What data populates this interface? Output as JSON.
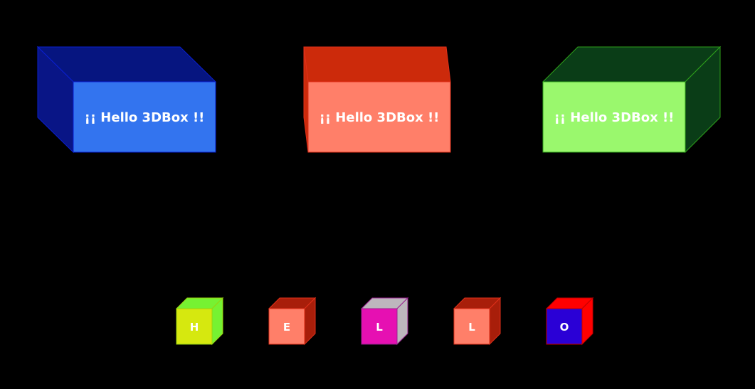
{
  "large_boxes": [
    {
      "label": "¡¡ Hello 3DBox !!",
      "front": "#3374ef",
      "side": "#091586",
      "top": "#061580",
      "stroke": "#0a1fd0"
    },
    {
      "label": "¡¡ Hello 3DBox !!",
      "front": "#ff7f69",
      "side": "#cc2a0b",
      "top": "#cc2a0b",
      "stroke": "#e0301a"
    },
    {
      "label": "¡¡ Hello 3DBox !!",
      "front": "#9af86d",
      "side": "#0a3d17",
      "top": "#0a3d17",
      "stroke": "#2ea01a"
    }
  ],
  "small_cubes": [
    {
      "label": "H",
      "front": "#d6e80f",
      "top": "#76f232",
      "side": "#76f232",
      "stroke": "#9ad40f"
    },
    {
      "label": "E",
      "front": "#ff7f69",
      "top": "#a81e0a",
      "side": "#a81e0a",
      "stroke": "#e0301a"
    },
    {
      "label": "L",
      "front": "#e610b2",
      "top": "#bdb6bd",
      "side": "#bdb6bd",
      "stroke": "#9a2090"
    },
    {
      "label": "L",
      "front": "#ff7f69",
      "top": "#a81e0a",
      "side": "#a81e0a",
      "stroke": "#e0301a"
    },
    {
      "label": "O",
      "front": "#2a00d6",
      "top": "#ff0000",
      "side": "#ff0000",
      "stroke": "#c00000"
    }
  ]
}
